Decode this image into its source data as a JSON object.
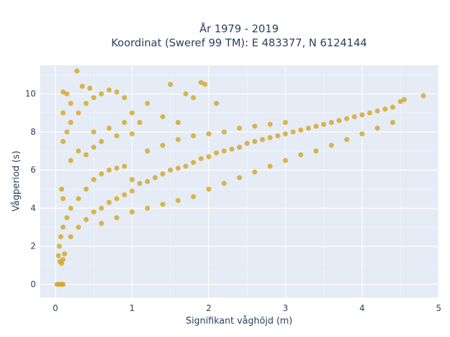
{
  "chart_data": {
    "type": "scatter",
    "title_line1": "År 1979 - 2019",
    "title_line2": "Koordinat (Sweref 99 TM): E 483377, N 6124144",
    "xlabel": "Signifikant våghöjd (m)",
    "ylabel": "Vågperiod (s)",
    "xlim": [
      -0.2,
      5.0
    ],
    "ylim": [
      -0.7,
      11.5
    ],
    "x_ticks": [
      0,
      1,
      2,
      3,
      4,
      5
    ],
    "y_ticks": [
      0,
      2,
      4,
      6,
      8,
      10
    ],
    "x_tick_labels": [
      "0",
      "1",
      "2",
      "3",
      "4",
      "5"
    ],
    "y_tick_labels": [
      "0",
      "2",
      "4",
      "6",
      "8",
      "10"
    ],
    "grid": true,
    "legend": "none",
    "colors": {
      "marker": "#D4A520",
      "plot_bg": "#E5ECF6",
      "grid": "#ffffff",
      "text": "#2a3f5f"
    },
    "series": [
      {
        "values_description_free": true,
        "points": [
          [
            0.02,
            0.0
          ],
          [
            0.05,
            0.0
          ],
          [
            0.08,
            0.0
          ],
          [
            0.1,
            0.0
          ],
          [
            0.04,
            1.5
          ],
          [
            0.06,
            1.2
          ],
          [
            0.08,
            1.1
          ],
          [
            0.1,
            1.3
          ],
          [
            0.12,
            1.6
          ],
          [
            0.05,
            2.0
          ],
          [
            0.07,
            2.5
          ],
          [
            0.1,
            3.0
          ],
          [
            0.15,
            3.5
          ],
          [
            0.2,
            4.0
          ],
          [
            0.1,
            4.5
          ],
          [
            0.08,
            5.0
          ],
          [
            0.2,
            2.5
          ],
          [
            0.3,
            3.0
          ],
          [
            0.4,
            3.4
          ],
          [
            0.5,
            3.8
          ],
          [
            0.6,
            4.0
          ],
          [
            0.7,
            4.3
          ],
          [
            0.8,
            4.5
          ],
          [
            0.9,
            4.7
          ],
          [
            1.0,
            4.9
          ],
          [
            0.3,
            4.5
          ],
          [
            0.4,
            5.0
          ],
          [
            0.5,
            5.5
          ],
          [
            0.6,
            5.8
          ],
          [
            0.7,
            6.0
          ],
          [
            0.8,
            6.1
          ],
          [
            0.9,
            6.2
          ],
          [
            1.0,
            5.5
          ],
          [
            1.1,
            5.3
          ],
          [
            1.2,
            5.4
          ],
          [
            1.3,
            5.6
          ],
          [
            1.4,
            5.8
          ],
          [
            1.5,
            6.0
          ],
          [
            1.6,
            6.1
          ],
          [
            1.7,
            6.2
          ],
          [
            1.8,
            6.4
          ],
          [
            1.9,
            6.6
          ],
          [
            2.0,
            6.7
          ],
          [
            2.1,
            6.9
          ],
          [
            2.2,
            7.0
          ],
          [
            2.3,
            7.1
          ],
          [
            2.4,
            7.2
          ],
          [
            2.5,
            7.4
          ],
          [
            2.6,
            7.5
          ],
          [
            2.7,
            7.6
          ],
          [
            2.8,
            7.7
          ],
          [
            2.9,
            7.8
          ],
          [
            3.0,
            7.9
          ],
          [
            3.1,
            8.0
          ],
          [
            3.2,
            8.1
          ],
          [
            3.3,
            8.2
          ],
          [
            3.4,
            8.3
          ],
          [
            3.5,
            8.4
          ],
          [
            3.6,
            8.5
          ],
          [
            3.7,
            8.6
          ],
          [
            3.8,
            8.7
          ],
          [
            3.9,
            8.8
          ],
          [
            4.0,
            8.9
          ],
          [
            4.1,
            9.0
          ],
          [
            4.2,
            9.1
          ],
          [
            4.3,
            9.2
          ],
          [
            4.4,
            9.3
          ],
          [
            4.5,
            9.6
          ],
          [
            4.55,
            9.7
          ],
          [
            4.8,
            9.9
          ],
          [
            0.1,
            7.5
          ],
          [
            0.15,
            8.0
          ],
          [
            0.2,
            8.5
          ],
          [
            0.1,
            9.0
          ],
          [
            0.2,
            9.5
          ],
          [
            0.1,
            10.1
          ],
          [
            0.15,
            10.0
          ],
          [
            0.3,
            9.0
          ],
          [
            0.4,
            9.5
          ],
          [
            0.5,
            9.8
          ],
          [
            0.6,
            10.0
          ],
          [
            0.7,
            10.2
          ],
          [
            0.8,
            10.1
          ],
          [
            0.9,
            9.8
          ],
          [
            0.28,
            11.2
          ],
          [
            0.35,
            10.4
          ],
          [
            0.45,
            10.3
          ],
          [
            1.5,
            10.5
          ],
          [
            1.9,
            10.6
          ],
          [
            1.95,
            10.5
          ],
          [
            1.7,
            10.0
          ],
          [
            1.8,
            9.8
          ],
          [
            2.1,
            9.5
          ],
          [
            1.2,
            9.5
          ],
          [
            1.0,
            9.0
          ],
          [
            1.1,
            8.5
          ],
          [
            1.4,
            8.8
          ],
          [
            1.6,
            8.5
          ],
          [
            0.5,
            8.0
          ],
          [
            0.7,
            8.2
          ],
          [
            0.9,
            8.5
          ],
          [
            0.6,
            7.5
          ],
          [
            0.8,
            7.8
          ],
          [
            1.0,
            7.9
          ],
          [
            0.3,
            7.0
          ],
          [
            0.5,
            7.2
          ],
          [
            0.2,
            6.5
          ],
          [
            0.4,
            6.8
          ],
          [
            1.2,
            7.0
          ],
          [
            1.4,
            7.3
          ],
          [
            1.6,
            7.6
          ],
          [
            1.8,
            7.8
          ],
          [
            2.0,
            7.9
          ],
          [
            2.2,
            8.0
          ],
          [
            2.4,
            8.2
          ],
          [
            2.6,
            8.3
          ],
          [
            2.8,
            8.4
          ],
          [
            3.0,
            8.5
          ],
          [
            2.0,
            5.0
          ],
          [
            2.2,
            5.3
          ],
          [
            2.4,
            5.6
          ],
          [
            2.6,
            5.9
          ],
          [
            2.8,
            6.2
          ],
          [
            3.0,
            6.5
          ],
          [
            3.2,
            6.8
          ],
          [
            3.4,
            7.0
          ],
          [
            3.6,
            7.3
          ],
          [
            3.8,
            7.6
          ],
          [
            4.0,
            7.9
          ],
          [
            4.2,
            8.2
          ],
          [
            4.4,
            8.5
          ],
          [
            1.2,
            4.0
          ],
          [
            1.4,
            4.2
          ],
          [
            1.6,
            4.4
          ],
          [
            1.8,
            4.6
          ],
          [
            1.0,
            3.8
          ],
          [
            0.8,
            3.5
          ],
          [
            0.6,
            3.2
          ]
        ]
      }
    ]
  }
}
